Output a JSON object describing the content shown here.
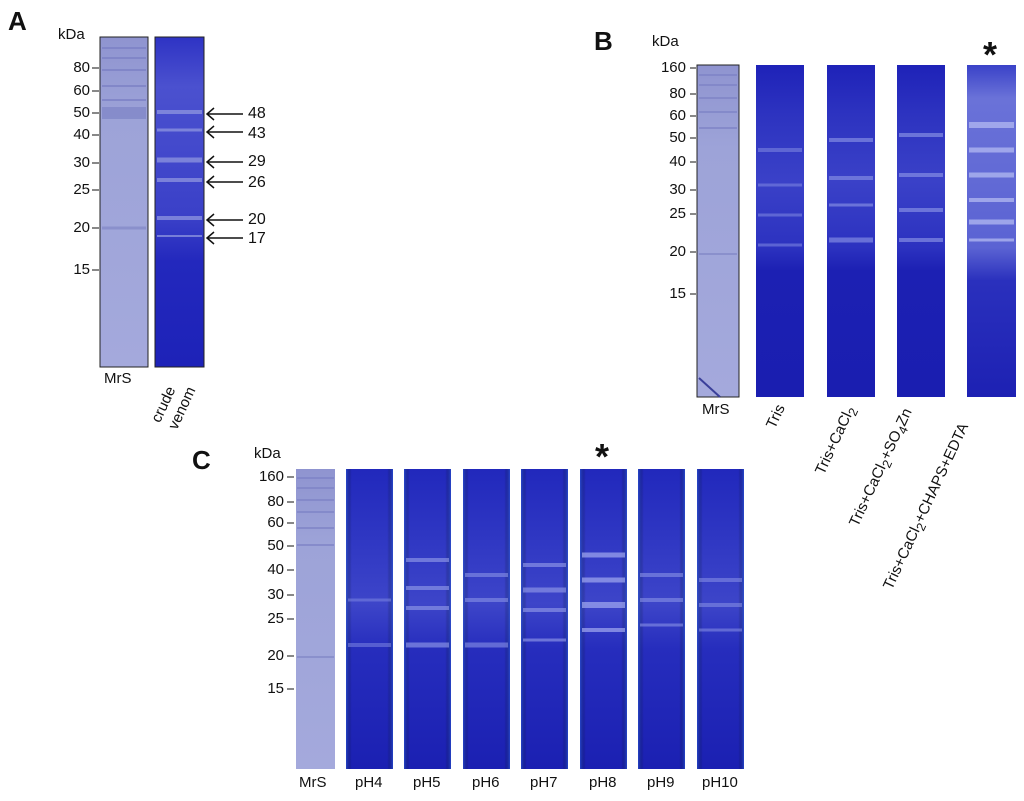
{
  "figure": {
    "panels": [
      {
        "letter": "A",
        "axis_unit": "kDa",
        "ticks": [
          "80",
          "60",
          "50",
          "40",
          "30",
          "25",
          "20",
          "15"
        ],
        "lanes": [
          "MrS",
          "crude",
          "venom"
        ],
        "arrow_labels": [
          "48",
          "43",
          "29",
          "26",
          "20",
          "17"
        ]
      },
      {
        "letter": "B",
        "axis_unit": "kDa",
        "ticks": [
          "160",
          "80",
          "60",
          "50",
          "40",
          "30",
          "25",
          "20",
          "15"
        ],
        "lanes": [
          "MrS",
          "Tris",
          "Tris+CaCl",
          "Tris+CaCl",
          "Tris+CaCl"
        ],
        "lane_label_parts": {
          "cacl_sub": "2",
          "so4zn_pre": "+SO",
          "so4zn_sub": "4",
          "so4zn_post": "Zn",
          "chaps_post": "+CHAPS+EDTA"
        },
        "marker": "*"
      },
      {
        "letter": "C",
        "axis_unit": "kDa",
        "ticks": [
          "160",
          "80",
          "60",
          "50",
          "40",
          "30",
          "25",
          "20",
          "15"
        ],
        "lanes": [
          "MrS",
          "pH4",
          "pH5",
          "pH6",
          "pH7",
          "pH8",
          "pH9",
          "pH10"
        ],
        "marker": "*"
      }
    ]
  },
  "colors": {
    "gel_dark": "#1c1fb8",
    "gel_marker": "#8a8fcf",
    "band_light": "#b9c0f0"
  }
}
